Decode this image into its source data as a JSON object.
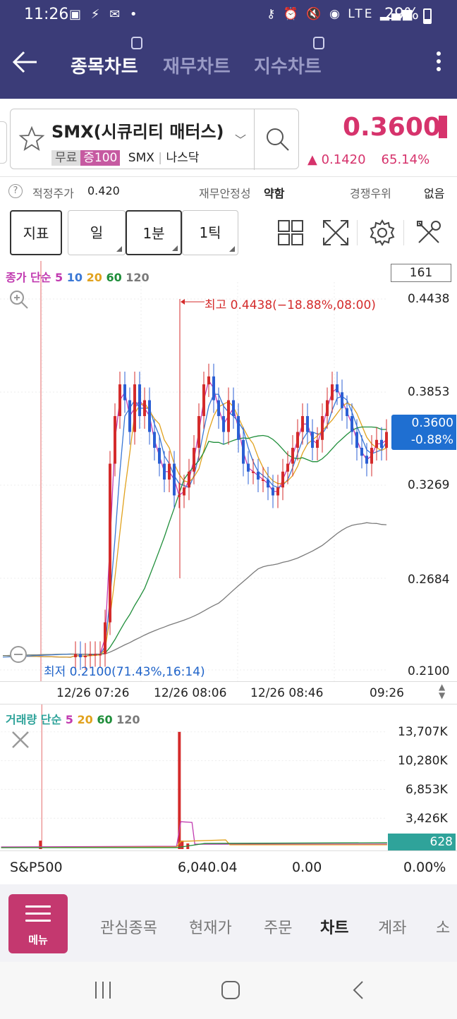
{
  "status_bar": {
    "time": "11:26",
    "left_icons": "▣ ⚡ ✉ •",
    "right_icons": "⚷ ⏰ 🔇 ◉ LTE ▂▄▆",
    "battery": "29%"
  },
  "header": {
    "tabs": [
      {
        "label": "종목차트",
        "active": true
      },
      {
        "label": "재무차트",
        "active": false
      },
      {
        "label": "지수차트",
        "active": false
      }
    ]
  },
  "stock": {
    "name": "SMX(시큐리티 매터스)",
    "tag_free": "무료",
    "tag_margin": "증100",
    "ticker": "SMX",
    "exchange": "나스닥",
    "price": "0.3600",
    "change": "▲ 0.1420",
    "change_pct": "65.14%"
  },
  "info_row": {
    "fair_price_label": "적정주가",
    "fair_price_value": "0.420",
    "stability_label": "재무안정성",
    "stability_value": "약함",
    "competition_label": "경쟁우위",
    "competition_value": "없음"
  },
  "toolbar": {
    "indicator": "지표",
    "day": "일",
    "min1": "1분",
    "tick1": "1틱"
  },
  "chart": {
    "legend_prefix": "종가 단순",
    "ma_labels": [
      "5",
      "10",
      "20",
      "60",
      "120"
    ],
    "ma_colors": [
      "#c13ab0",
      "#3a78d6",
      "#e1a21e",
      "#1f8e3a",
      "#7a7a7a"
    ],
    "count": "161",
    "y_labels": [
      "0.4438",
      "0.3853",
      "0.3269",
      "0.2684",
      "0.2100"
    ],
    "current_price": "0.3600",
    "current_pct": "-0.88%",
    "max_label": "최고 0.4438(−18.88%,08:00)",
    "min_label": "최저 0.2100(71.43%,16:14)",
    "time_labels": [
      "12/26 07:26",
      "12/26 08:06",
      "12/26 08:46",
      "09:26"
    ]
  },
  "chart_data": {
    "type": "candlestick",
    "x_start": "12/26 07:26",
    "x_end": "09:26",
    "ylim": [
      0.21,
      0.4438
    ],
    "high": 0.4438,
    "low": 0.21,
    "last": 0.36,
    "close": [
      0.218,
      0.22,
      0.218,
      0.219,
      0.22,
      0.22,
      0.22,
      0.24,
      0.34,
      0.37,
      0.39,
      0.38,
      0.36,
      0.39,
      0.37,
      0.38,
      0.36,
      0.35,
      0.34,
      0.33,
      0.34,
      0.32,
      0.32,
      0.325,
      0.335,
      0.35,
      0.37,
      0.39,
      0.395,
      0.38,
      0.37,
      0.36,
      0.38,
      0.37,
      0.355,
      0.34,
      0.335,
      0.335,
      0.33,
      0.33,
      0.325,
      0.32,
      0.325,
      0.335,
      0.34,
      0.35,
      0.36,
      0.37,
      0.36,
      0.35,
      0.355,
      0.37,
      0.38,
      0.39,
      0.385,
      0.375,
      0.37,
      0.36,
      0.35,
      0.345,
      0.34,
      0.35,
      0.355,
      0.35,
      0.36
    ]
  },
  "volume": {
    "legend_prefix": "거래량 단순",
    "ma_labels": [
      "5",
      "20",
      "60",
      "120"
    ],
    "y_labels": [
      "13,707K",
      "10,280K",
      "6,853K",
      "3,426K"
    ],
    "current": "628"
  },
  "index_row": {
    "name": "S&P500",
    "value": "6,040.04",
    "change": "0.00",
    "pct": "0.00%"
  },
  "bottom_nav": {
    "menu": "메뉴",
    "items": [
      "관심종목",
      "현재가",
      "주문",
      "차트",
      "계좌",
      "소"
    ]
  }
}
